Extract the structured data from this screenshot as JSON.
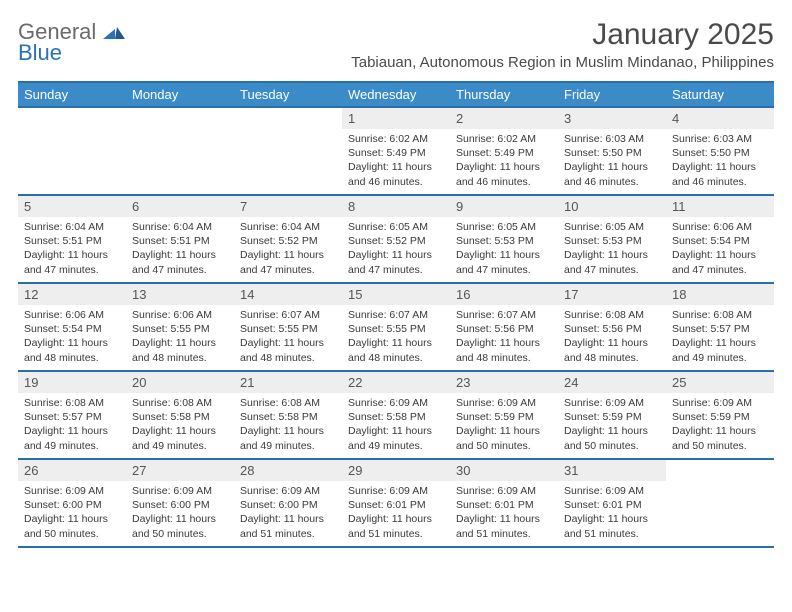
{
  "brand": {
    "part1": "General",
    "part2": "Blue"
  },
  "title": "January 2025",
  "location": "Tabiauan, Autonomous Region in Muslim Mindanao, Philippines",
  "colors": {
    "header_bg": "#3b8bc9",
    "header_border": "#2a6fa8",
    "daynum_bg": "#eeeeee",
    "text": "#333333",
    "brand_gray": "#6a6a6a",
    "brand_blue": "#2a71b8"
  },
  "day_labels": [
    "Sunday",
    "Monday",
    "Tuesday",
    "Wednesday",
    "Thursday",
    "Friday",
    "Saturday"
  ],
  "weeks": [
    [
      null,
      null,
      null,
      {
        "n": "1",
        "sr": "6:02 AM",
        "ss": "5:49 PM",
        "dl": "11 hours and 46 minutes."
      },
      {
        "n": "2",
        "sr": "6:02 AM",
        "ss": "5:49 PM",
        "dl": "11 hours and 46 minutes."
      },
      {
        "n": "3",
        "sr": "6:03 AM",
        "ss": "5:50 PM",
        "dl": "11 hours and 46 minutes."
      },
      {
        "n": "4",
        "sr": "6:03 AM",
        "ss": "5:50 PM",
        "dl": "11 hours and 46 minutes."
      }
    ],
    [
      {
        "n": "5",
        "sr": "6:04 AM",
        "ss": "5:51 PM",
        "dl": "11 hours and 47 minutes."
      },
      {
        "n": "6",
        "sr": "6:04 AM",
        "ss": "5:51 PM",
        "dl": "11 hours and 47 minutes."
      },
      {
        "n": "7",
        "sr": "6:04 AM",
        "ss": "5:52 PM",
        "dl": "11 hours and 47 minutes."
      },
      {
        "n": "8",
        "sr": "6:05 AM",
        "ss": "5:52 PM",
        "dl": "11 hours and 47 minutes."
      },
      {
        "n": "9",
        "sr": "6:05 AM",
        "ss": "5:53 PM",
        "dl": "11 hours and 47 minutes."
      },
      {
        "n": "10",
        "sr": "6:05 AM",
        "ss": "5:53 PM",
        "dl": "11 hours and 47 minutes."
      },
      {
        "n": "11",
        "sr": "6:06 AM",
        "ss": "5:54 PM",
        "dl": "11 hours and 47 minutes."
      }
    ],
    [
      {
        "n": "12",
        "sr": "6:06 AM",
        "ss": "5:54 PM",
        "dl": "11 hours and 48 minutes."
      },
      {
        "n": "13",
        "sr": "6:06 AM",
        "ss": "5:55 PM",
        "dl": "11 hours and 48 minutes."
      },
      {
        "n": "14",
        "sr": "6:07 AM",
        "ss": "5:55 PM",
        "dl": "11 hours and 48 minutes."
      },
      {
        "n": "15",
        "sr": "6:07 AM",
        "ss": "5:55 PM",
        "dl": "11 hours and 48 minutes."
      },
      {
        "n": "16",
        "sr": "6:07 AM",
        "ss": "5:56 PM",
        "dl": "11 hours and 48 minutes."
      },
      {
        "n": "17",
        "sr": "6:08 AM",
        "ss": "5:56 PM",
        "dl": "11 hours and 48 minutes."
      },
      {
        "n": "18",
        "sr": "6:08 AM",
        "ss": "5:57 PM",
        "dl": "11 hours and 49 minutes."
      }
    ],
    [
      {
        "n": "19",
        "sr": "6:08 AM",
        "ss": "5:57 PM",
        "dl": "11 hours and 49 minutes."
      },
      {
        "n": "20",
        "sr": "6:08 AM",
        "ss": "5:58 PM",
        "dl": "11 hours and 49 minutes."
      },
      {
        "n": "21",
        "sr": "6:08 AM",
        "ss": "5:58 PM",
        "dl": "11 hours and 49 minutes."
      },
      {
        "n": "22",
        "sr": "6:09 AM",
        "ss": "5:58 PM",
        "dl": "11 hours and 49 minutes."
      },
      {
        "n": "23",
        "sr": "6:09 AM",
        "ss": "5:59 PM",
        "dl": "11 hours and 50 minutes."
      },
      {
        "n": "24",
        "sr": "6:09 AM",
        "ss": "5:59 PM",
        "dl": "11 hours and 50 minutes."
      },
      {
        "n": "25",
        "sr": "6:09 AM",
        "ss": "5:59 PM",
        "dl": "11 hours and 50 minutes."
      }
    ],
    [
      {
        "n": "26",
        "sr": "6:09 AM",
        "ss": "6:00 PM",
        "dl": "11 hours and 50 minutes."
      },
      {
        "n": "27",
        "sr": "6:09 AM",
        "ss": "6:00 PM",
        "dl": "11 hours and 50 minutes."
      },
      {
        "n": "28",
        "sr": "6:09 AM",
        "ss": "6:00 PM",
        "dl": "11 hours and 51 minutes."
      },
      {
        "n": "29",
        "sr": "6:09 AM",
        "ss": "6:01 PM",
        "dl": "11 hours and 51 minutes."
      },
      {
        "n": "30",
        "sr": "6:09 AM",
        "ss": "6:01 PM",
        "dl": "11 hours and 51 minutes."
      },
      {
        "n": "31",
        "sr": "6:09 AM",
        "ss": "6:01 PM",
        "dl": "11 hours and 51 minutes."
      },
      null
    ]
  ],
  "labels": {
    "sunrise": "Sunrise:",
    "sunset": "Sunset:",
    "daylight": "Daylight:"
  }
}
